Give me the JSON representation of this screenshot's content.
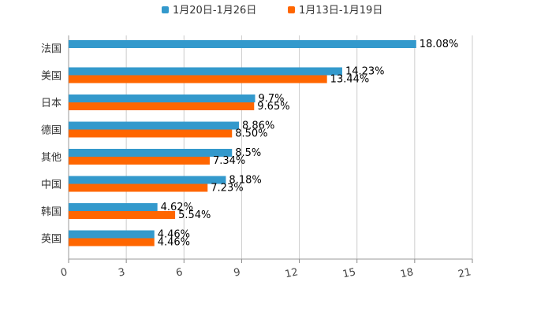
{
  "chart_data": {
    "type": "bar",
    "orientation": "horizontal",
    "title": "",
    "xlabel": "",
    "ylabel": "",
    "xlim": [
      0,
      21
    ],
    "x_ticks": [
      0,
      3,
      6,
      9,
      12,
      15,
      18,
      21
    ],
    "grid": true,
    "legend_position": "top-center",
    "categories": [
      "法国",
      "美国",
      "日本",
      "德国",
      "其他",
      "中国",
      "韩国",
      "英国"
    ],
    "series": [
      {
        "name": "1月20日-1月26日",
        "color": "#3399cc",
        "values": [
          18.08,
          14.23,
          9.7,
          8.86,
          8.5,
          8.18,
          4.62,
          4.46
        ],
        "labels": [
          "18.08%",
          "14.23%",
          "9.7%",
          "8.86%",
          "8.5%",
          "8.18%",
          "4.62%",
          "4.46%"
        ]
      },
      {
        "name": "1月13日-1月19日",
        "color": "#ff6600",
        "values": [
          null,
          13.44,
          9.65,
          8.5,
          7.34,
          7.23,
          5.54,
          4.46
        ],
        "labels": [
          "",
          "13.44%",
          "9.65%",
          "8.50%",
          "7.34%",
          "7.23%",
          "5.54%",
          "4.46%"
        ]
      }
    ]
  }
}
